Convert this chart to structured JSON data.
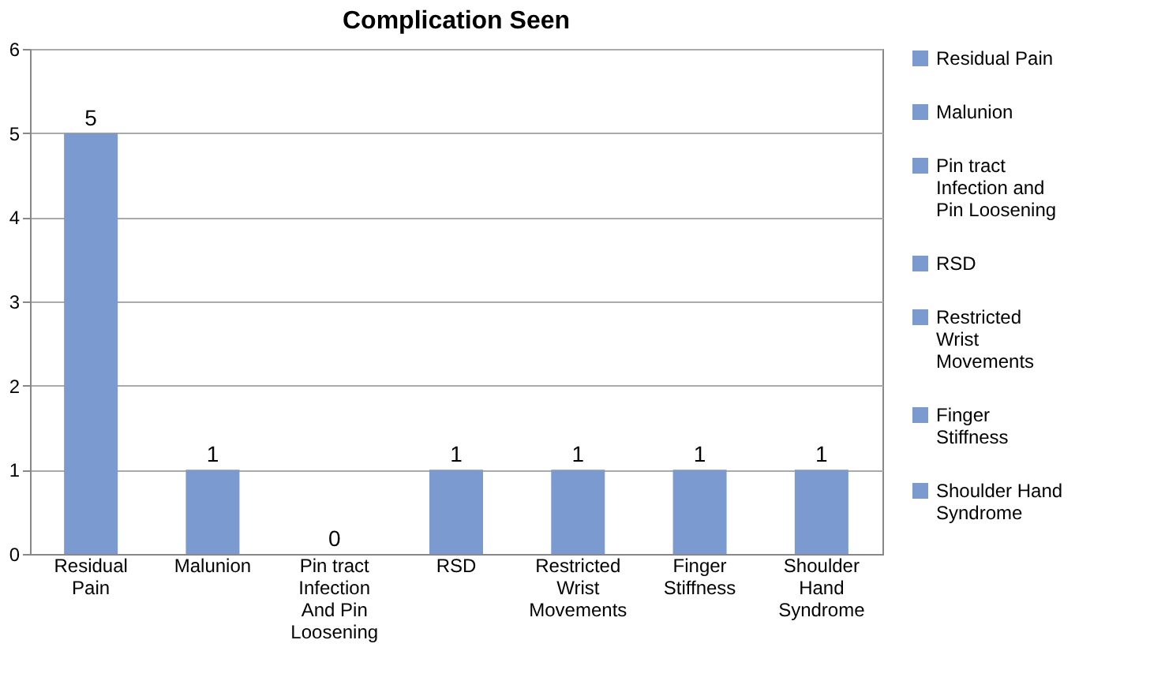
{
  "chart_data": {
    "type": "bar",
    "title": "Complication Seen",
    "categories": [
      "Residual Pain",
      "Malunion",
      "Pin tract Infection And Pin Loosening",
      "RSD",
      "Restricted Wrist Movements",
      "Finger Stiffness",
      "Shoulder Hand Syndrome"
    ],
    "series": [
      {
        "name": "Residual Pain",
        "color": "#7b9bd0",
        "values": [
          5,
          null,
          null,
          null,
          null,
          null,
          null
        ]
      },
      {
        "name": "Malunion",
        "color": "#7b9bd0",
        "values": [
          null,
          1,
          null,
          null,
          null,
          null,
          null
        ]
      },
      {
        "name": "Pin tract Infection and Pin Loosening",
        "color": "#7b9bd0",
        "values": [
          null,
          null,
          0,
          null,
          null,
          null,
          null
        ]
      },
      {
        "name": "RSD",
        "color": "#7b9bd0",
        "values": [
          null,
          null,
          null,
          1,
          null,
          null,
          null
        ]
      },
      {
        "name": "Restricted Wrist Movements",
        "color": "#7b9bd0",
        "values": [
          null,
          null,
          null,
          null,
          1,
          null,
          null
        ]
      },
      {
        "name": "Finger Stiffness",
        "color": "#7b9bd0",
        "values": [
          null,
          null,
          null,
          null,
          null,
          1,
          null
        ]
      },
      {
        "name": "Shoulder Hand Syndrome",
        "color": "#7b9bd0",
        "values": [
          null,
          null,
          null,
          null,
          null,
          null,
          1
        ]
      }
    ],
    "ylim": [
      0,
      6
    ],
    "yticks": [
      0,
      1,
      2,
      3,
      4,
      5,
      6
    ],
    "grid": "y",
    "legend": "right",
    "data_labels": true
  }
}
